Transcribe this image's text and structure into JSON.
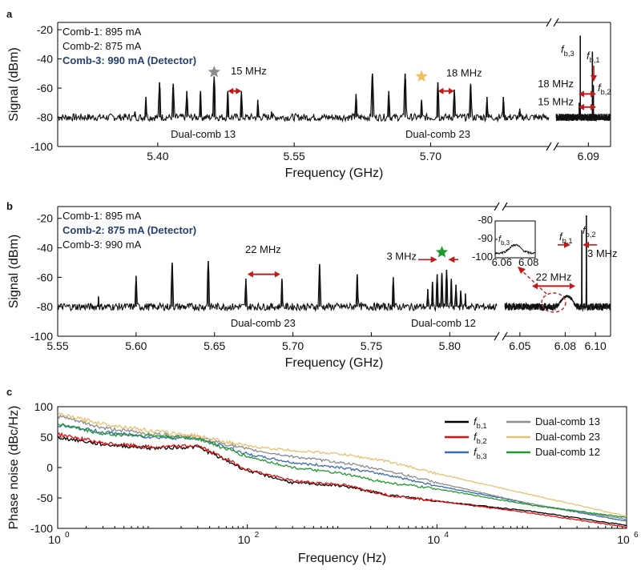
{
  "chart_data": [
    {
      "panel": "a",
      "type": "line",
      "xlabel": "Frequency (GHz)",
      "ylabel": "Signal (dBm)",
      "ylim": [
        -100,
        -15
      ],
      "yticks": [
        -100,
        -80,
        -60,
        -40,
        -20
      ],
      "segments": [
        {
          "xlim": [
            5.29,
            5.83
          ],
          "xticks": [
            5.4,
            5.55,
            5.7
          ],
          "tick_labels": [
            "5.40",
            "5.55",
            "5.70"
          ]
        },
        {
          "xlim": [
            6.058,
            6.112
          ],
          "xticks": [
            6.09
          ],
          "tick_labels": [
            "6.09"
          ]
        }
      ],
      "comb_settings": [
        {
          "text": "Comb-1: 895 mA",
          "detector": false
        },
        {
          "text": "Comb-2: 875 mA",
          "detector": false
        },
        {
          "text": "Comb-3: 990 mA (Detector)",
          "detector": true
        }
      ],
      "noise_floor": -80,
      "peaks": [
        {
          "x": 5.375,
          "y": -76
        },
        {
          "x": 5.387,
          "y": -66
        },
        {
          "x": 5.402,
          "y": -56
        },
        {
          "x": 5.417,
          "y": -57
        },
        {
          "x": 5.432,
          "y": -62
        },
        {
          "x": 5.447,
          "y": -62
        },
        {
          "x": 5.462,
          "y": -52
        },
        {
          "x": 5.477,
          "y": -62
        },
        {
          "x": 5.492,
          "y": -62
        },
        {
          "x": 5.51,
          "y": -68
        },
        {
          "x": 5.525,
          "y": -76
        },
        {
          "x": 5.618,
          "y": -64
        },
        {
          "x": 5.636,
          "y": -50
        },
        {
          "x": 5.654,
          "y": -62
        },
        {
          "x": 5.672,
          "y": -50
        },
        {
          "x": 5.69,
          "y": -68
        },
        {
          "x": 5.708,
          "y": -56
        },
        {
          "x": 5.726,
          "y": -61
        },
        {
          "x": 5.744,
          "y": -57
        },
        {
          "x": 5.762,
          "y": -66
        },
        {
          "x": 5.78,
          "y": -66
        },
        {
          "x": 5.798,
          "y": -74
        },
        {
          "x": 6.081,
          "y": -70
        },
        {
          "x": 6.082,
          "y": -24,
          "label": "f_b,3"
        },
        {
          "x": 6.094,
          "y": -35,
          "label": "f_b,1"
        },
        {
          "x": 6.095,
          "y": -58,
          "label": "f_b,2"
        }
      ],
      "annotations": [
        {
          "text": "15 MHz",
          "x": 5.5,
          "y": -55
        },
        {
          "text": "18 MHz",
          "x": 5.728,
          "y": -51
        },
        {
          "text": "18 MHz",
          "x": 6.076,
          "y": -61
        },
        {
          "text": "15 MHz",
          "x": 6.076,
          "y": -70
        },
        {
          "text": "Dual-comb 13",
          "x": 5.45,
          "y": -91
        },
        {
          "text": "Dual-comb 23",
          "x": 5.708,
          "y": -91
        }
      ],
      "markers": [
        {
          "type": "star",
          "color": "#8c8c8c",
          "x": 5.462,
          "y": -49
        },
        {
          "type": "star",
          "color": "#f0c060",
          "x": 5.69,
          "y": -52
        }
      ]
    },
    {
      "panel": "b",
      "type": "line",
      "xlabel": "Frequency (GHz)",
      "ylabel": "Signal (dBm)",
      "ylim": [
        -100,
        -12
      ],
      "yticks": [
        -100,
        -80,
        -60,
        -40,
        -20
      ],
      "segments": [
        {
          "xlim": [
            5.55,
            5.83
          ],
          "xticks": [
            5.55,
            5.6,
            5.65,
            5.7,
            5.75,
            5.8
          ],
          "tick_labels": [
            "5.55",
            "5.60",
            "5.65",
            "5.70",
            "5.75",
            "5.80"
          ]
        },
        {
          "xlim": [
            6.04,
            6.11
          ],
          "xticks": [
            6.05,
            6.08,
            6.1
          ],
          "tick_labels": [
            "6.05",
            "6.08",
            "6.10"
          ]
        }
      ],
      "comb_settings": [
        {
          "text": "Comb-1: 895 mA",
          "detector": false
        },
        {
          "text": "Comb-2: 875 mA (Detector)",
          "detector": true
        },
        {
          "text": "Comb-3: 990 mA",
          "detector": false
        }
      ],
      "noise_floor": -80,
      "peaks": [
        {
          "x": 5.576,
          "y": -73
        },
        {
          "x": 5.6,
          "y": -59
        },
        {
          "x": 5.623,
          "y": -50
        },
        {
          "x": 5.646,
          "y": -49
        },
        {
          "x": 5.67,
          "y": -61
        },
        {
          "x": 5.693,
          "y": -61
        },
        {
          "x": 5.717,
          "y": -51
        },
        {
          "x": 5.741,
          "y": -58
        },
        {
          "x": 5.764,
          "y": -60
        },
        {
          "x": 5.786,
          "y": -68
        },
        {
          "x": 5.789,
          "y": -63
        },
        {
          "x": 5.792,
          "y": -58
        },
        {
          "x": 5.795,
          "y": -57
        },
        {
          "x": 5.798,
          "y": -55
        },
        {
          "x": 5.801,
          "y": -61
        },
        {
          "x": 5.804,
          "y": -65
        },
        {
          "x": 5.807,
          "y": -69
        },
        {
          "x": 5.81,
          "y": -71
        },
        {
          "x": 6.091,
          "y": -28,
          "label": "f_b,1"
        },
        {
          "x": 6.094,
          "y": -18,
          "label": "f_b,2"
        }
      ],
      "annotations": [
        {
          "text": "22 MHz",
          "x": 5.681,
          "y": -50
        },
        {
          "text": "3 MHz",
          "x": 5.788,
          "y": -46
        },
        {
          "text": "22 MHz",
          "x": 6.081,
          "y": -60
        },
        {
          "text": "3 MHz",
          "x": 6.103,
          "y": -44
        },
        {
          "text": "Dual-comb 23",
          "x": 5.681,
          "y": -91
        },
        {
          "text": "Dual-comb 12",
          "x": 5.796,
          "y": -91
        }
      ],
      "markers": [
        {
          "type": "star",
          "color": "#1f9a2e",
          "x": 5.795,
          "y": -43
        }
      ],
      "inset": {
        "ylim": [
          -100,
          -80
        ],
        "yticks": [
          -80,
          -90,
          -100
        ],
        "ytick_labels": [
          "-80",
          "-90",
          "-100"
        ],
        "xlim": [
          6.055,
          6.085
        ],
        "xticks": [
          6.06,
          6.08
        ],
        "xtick_labels": [
          "6.06",
          "6.08"
        ],
        "label": "f_b,3",
        "peak": {
          "x": 6.07,
          "y": -93
        }
      }
    },
    {
      "panel": "c",
      "type": "line",
      "xscale": "log",
      "xlabel": "Frequency (Hz)",
      "ylabel": "Phase noise (dBc/Hz)",
      "xlim": [
        1,
        1000000
      ],
      "ylim": [
        -100,
        100
      ],
      "xticks": [
        1,
        100,
        10000,
        1000000
      ],
      "xtick_labels": [
        "10",
        "10",
        "10",
        "10"
      ],
      "xtick_exponents": [
        "0",
        "2",
        "4",
        "6"
      ],
      "yticks": [
        -100,
        -50,
        0,
        50,
        100
      ],
      "series": [
        {
          "name": "f_b,1",
          "color": "#000000",
          "x": [
            1,
            3,
            10,
            30,
            100,
            300,
            1000,
            3000,
            10000,
            100000,
            1000000
          ],
          "y": [
            50,
            38,
            32,
            34,
            -5,
            -25,
            -30,
            -45,
            -55,
            -72,
            -95
          ]
        },
        {
          "name": "f_b,2",
          "color": "#e01010",
          "x": [
            1,
            3,
            10,
            30,
            100,
            300,
            1000,
            3000,
            10000,
            100000,
            1000000
          ],
          "y": [
            55,
            40,
            33,
            36,
            -3,
            -22,
            -28,
            -45,
            -55,
            -75,
            -98
          ]
        },
        {
          "name": "f_b,3",
          "color": "#3a6ab0",
          "x": [
            1,
            3,
            10,
            30,
            100,
            300,
            1000,
            3000,
            10000,
            100000,
            1000000
          ],
          "y": [
            70,
            58,
            50,
            48,
            22,
            8,
            0,
            -12,
            -30,
            -60,
            -88
          ]
        },
        {
          "name": "Dual-comb 13",
          "color": "#8c8c8c",
          "x": [
            1,
            3,
            10,
            30,
            100,
            300,
            1000,
            3000,
            10000,
            100000,
            1000000
          ],
          "y": [
            85,
            65,
            55,
            50,
            30,
            18,
            8,
            -5,
            -25,
            -60,
            -85
          ]
        },
        {
          "name": "Dual-comb 23",
          "color": "#e8c070",
          "x": [
            1,
            3,
            10,
            30,
            100,
            300,
            1000,
            3000,
            10000,
            100000,
            1000000
          ],
          "y": [
            88,
            72,
            60,
            52,
            35,
            28,
            22,
            10,
            -10,
            -45,
            -80
          ]
        },
        {
          "name": "Dual-comb 12",
          "color": "#1f9a2e",
          "x": [
            1,
            3,
            10,
            30,
            100,
            300,
            1000,
            3000,
            10000,
            100000,
            1000000
          ],
          "y": [
            72,
            55,
            52,
            48,
            18,
            0,
            -10,
            -25,
            -35,
            -62,
            -82
          ]
        }
      ],
      "legend": [
        {
          "name": "f_b,1",
          "base": "f",
          "sub": "b,1",
          "color": "#000000"
        },
        {
          "name": "f_b,2",
          "base": "f",
          "sub": "b,2",
          "color": "#e01010"
        },
        {
          "name": "f_b,3",
          "base": "f",
          "sub": "b,3",
          "color": "#3a6ab0"
        },
        {
          "name": "Dual-comb 13",
          "color": "#8c8c8c"
        },
        {
          "name": "Dual-comb 23",
          "color": "#e8c070"
        },
        {
          "name": "Dual-comb 12",
          "color": "#1f9a2e"
        }
      ],
      "legend_position": "top-right"
    }
  ],
  "panel_labels": [
    "a",
    "b",
    "c"
  ],
  "colors": {
    "detector_text": "#27406e",
    "arrow": "#c01a1a",
    "axis": "#000000"
  }
}
